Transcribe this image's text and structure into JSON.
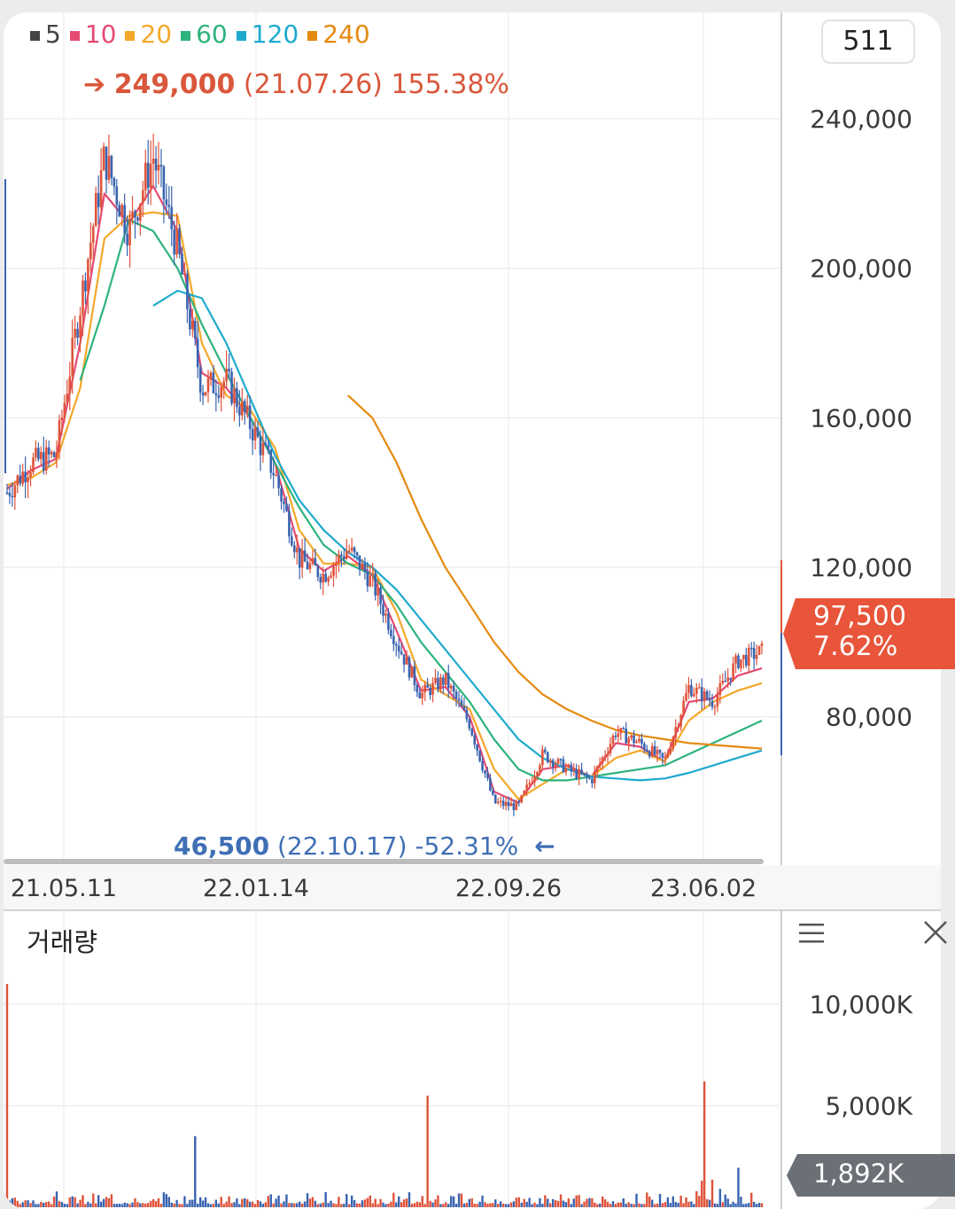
{
  "legend": [
    {
      "label": "5",
      "color": "#444444"
    },
    {
      "label": "10",
      "color": "#e54a73"
    },
    {
      "label": "20",
      "color": "#f4a82a"
    },
    {
      "label": "60",
      "color": "#2db37d"
    },
    {
      "label": "120",
      "color": "#1eaacd"
    },
    {
      "label": "240",
      "color": "#e58a10"
    }
  ],
  "count_box": "511",
  "high": {
    "arrow": "➔",
    "price": "249,000",
    "date": "(21.07.26)",
    "pct": "155.38%"
  },
  "low": {
    "price": "46,500",
    "date": "(22.10.17)",
    "pct": "-52.31%",
    "arrow": "←"
  },
  "current": {
    "price": "97,500",
    "pct": "7.62%"
  },
  "volume_panel": {
    "title": "거래량",
    "current": "1,892K",
    "menu_icon": "menu-icon",
    "close_icon": "close-icon"
  },
  "colors": {
    "up": "#e0533a",
    "down": "#3a64b0",
    "ma5": "#444444",
    "ma10": "#e54a73",
    "ma20": "#f4a82a",
    "ma60": "#2db37d",
    "ma120": "#1eaacd",
    "ma240": "#e58a10"
  },
  "chart_data": [
    {
      "type": "line",
      "title": "",
      "x_tick_labels": [
        "21.05.11",
        "22.01.14",
        "22.09.26",
        "23.06.02"
      ],
      "y_ticks": [
        80000,
        120000,
        160000,
        200000,
        240000
      ],
      "y_tick_labels": [
        "80,000",
        "120,000",
        "160,000",
        "200,000",
        "240,000"
      ],
      "ylim": [
        30000,
        260000
      ],
      "grid": true,
      "series": [
        {
          "name": "5",
          "values": [
            140000,
            148000,
            150000,
            190000,
            230000,
            210000,
            230000,
            205000,
            168000,
            170000,
            158000,
            145000,
            122000,
            118000,
            125000,
            116000,
            100000,
            86000,
            90000,
            78000,
            57000,
            56000,
            70000,
            66000,
            63000,
            76000,
            73000,
            68000,
            88000,
            84000,
            95000,
            97500
          ]
        },
        {
          "name": "10",
          "values": [
            141000,
            146000,
            149000,
            180000,
            220000,
            212000,
            222000,
            210000,
            172000,
            168000,
            160000,
            148000,
            125000,
            119000,
            123000,
            118000,
            103000,
            87000,
            88000,
            80000,
            60000,
            57000,
            66000,
            67000,
            64000,
            73000,
            72000,
            68000,
            84000,
            85000,
            91000,
            93000
          ]
        },
        {
          "name": "20",
          "values": [
            142000,
            144000,
            148000,
            168000,
            208000,
            214000,
            215000,
            214000,
            180000,
            166000,
            162000,
            152000,
            130000,
            121000,
            121000,
            120000,
            108000,
            90000,
            86000,
            82000,
            66000,
            58000,
            62000,
            66000,
            64000,
            69000,
            71000,
            68000,
            79000,
            84000,
            87000,
            89000
          ]
        },
        {
          "name": "60",
          "values": [
            null,
            null,
            null,
            170000,
            190000,
            213000,
            210000,
            200000,
            185000,
            172000,
            160000,
            148000,
            136000,
            126000,
            121000,
            118000,
            110000,
            100000,
            92000,
            84000,
            74000,
            66000,
            63000,
            63000,
            64000,
            65000,
            66000,
            67000,
            70000,
            73000,
            76000,
            79000
          ]
        },
        {
          "name": "120",
          "values": [
            null,
            null,
            null,
            null,
            null,
            null,
            190000,
            194000,
            192000,
            180000,
            165000,
            150000,
            138000,
            130000,
            124000,
            120000,
            114000,
            106000,
            98000,
            90000,
            82000,
            74000,
            69000,
            66000,
            64000,
            63500,
            63000,
            63500,
            65000,
            67000,
            69000,
            71000
          ]
        },
        {
          "name": "240",
          "values": [
            null,
            null,
            null,
            null,
            null,
            null,
            null,
            null,
            null,
            null,
            null,
            null,
            null,
            null,
            166000,
            160000,
            148000,
            133000,
            120000,
            110000,
            100000,
            92000,
            86000,
            82000,
            79000,
            76500,
            75000,
            74000,
            73000,
            72500,
            72000,
            71500
          ]
        }
      ]
    },
    {
      "type": "bar",
      "title": "거래량",
      "y_ticks": [
        5000,
        10000
      ],
      "y_tick_labels": [
        "5,000K",
        "10,000K"
      ],
      "ylim": [
        0,
        12000
      ],
      "peaks": [
        {
          "x": "21.05.11",
          "value": 11000
        },
        {
          "x": "21.10",
          "value": 3500
        },
        {
          "x": "22.08",
          "value": 5500
        },
        {
          "x": "23.06",
          "value": 6200
        }
      ],
      "current": 1892
    }
  ]
}
